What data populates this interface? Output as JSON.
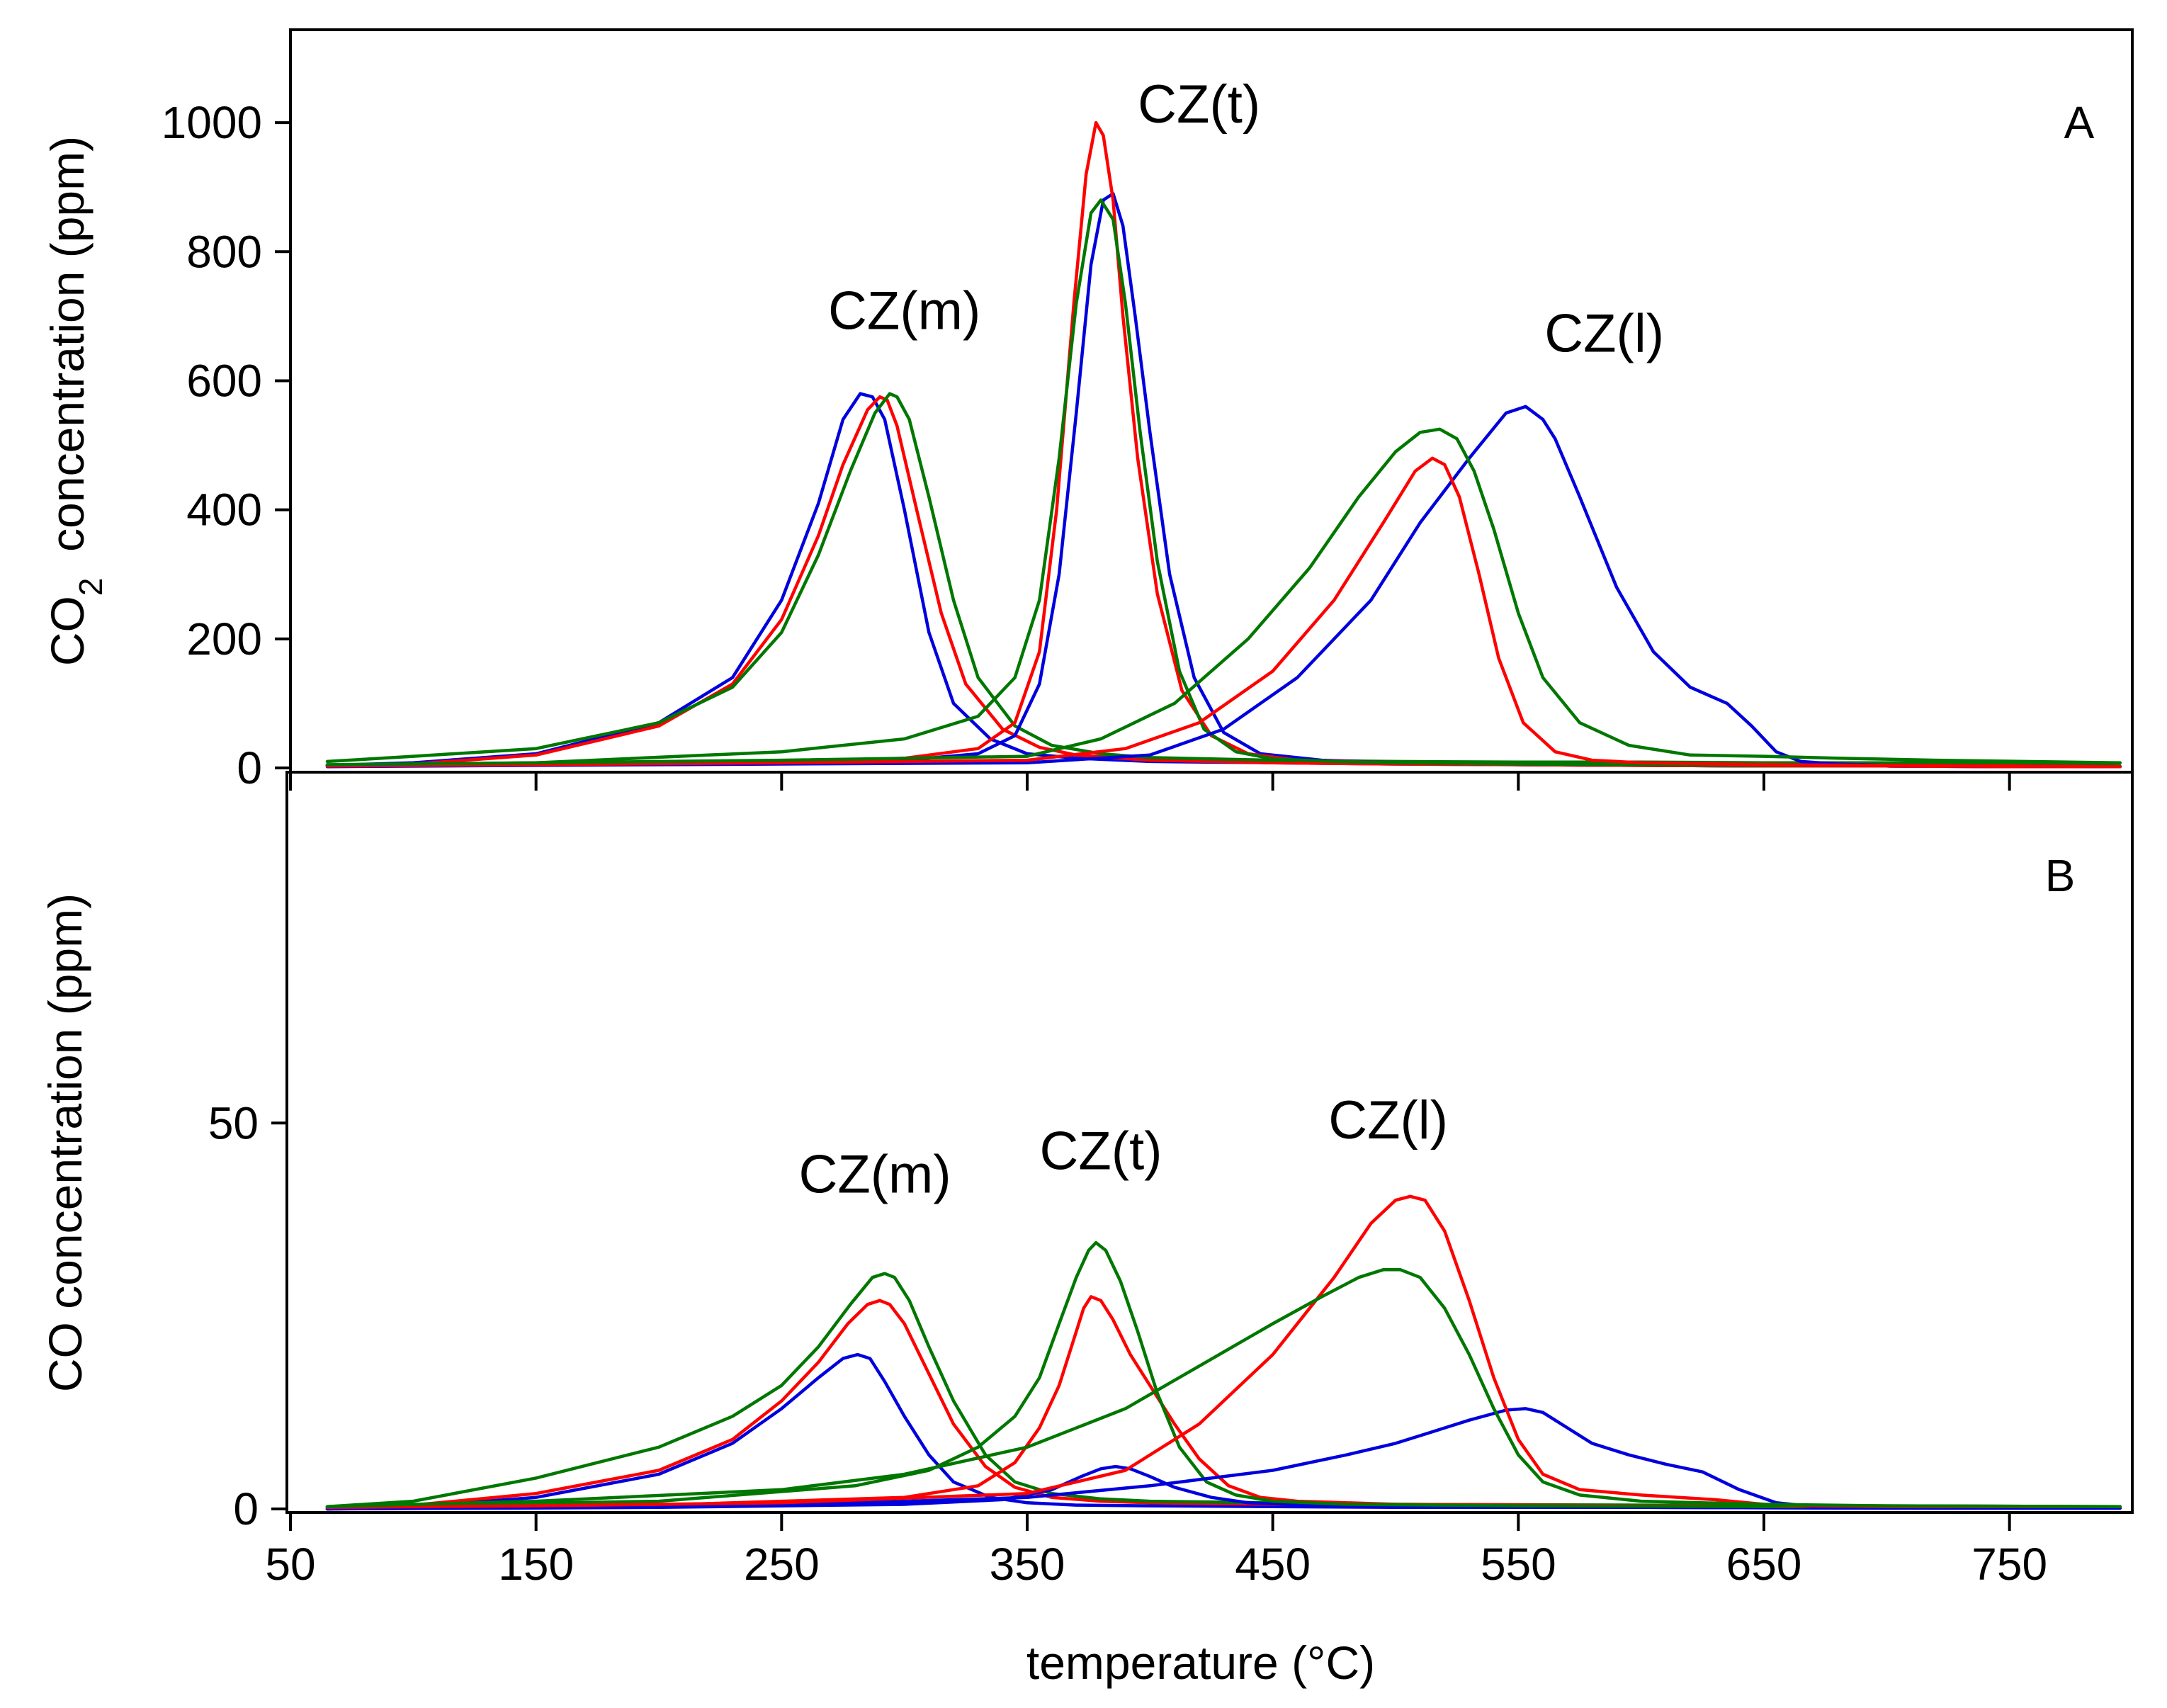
{
  "colors": {
    "blue": "#0000dd",
    "red": "#ff0000",
    "green": "#007700",
    "axis": "#000000"
  },
  "chart_data": [
    {
      "panel": "A",
      "type": "line",
      "panel_label": "A",
      "ylabel_main": "CO",
      "ylabel_sub": "2",
      "ylabel_rest": "  concentration (ppm)",
      "xlim": [
        50,
        800
      ],
      "ylim": [
        0,
        1100
      ],
      "yticks": [
        0,
        200,
        400,
        600,
        800,
        1000
      ],
      "yticklabels": [
        "0",
        "200",
        "400",
        "600",
        "800",
        "1000"
      ],
      "xticks": [
        50,
        150,
        250,
        350,
        450,
        550,
        650,
        750
      ],
      "annotations": [
        {
          "text": "CZ(m)",
          "x": 300,
          "y": 680
        },
        {
          "text": "CZ(t)",
          "x": 420,
          "y": 1000
        },
        {
          "text": "CZ(l)",
          "x": 585,
          "y": 645
        }
      ],
      "series": [
        {
          "name": "blue-1",
          "color": "blue",
          "x": [
            65,
            100,
            150,
            200,
            230,
            250,
            265,
            275,
            282,
            287,
            292,
            300,
            310,
            320,
            335,
            350,
            370,
            400,
            450,
            500,
            550,
            600,
            650,
            700,
            750,
            795
          ],
          "y": [
            4,
            8,
            22,
            70,
            140,
            260,
            410,
            540,
            580,
            575,
            540,
            400,
            210,
            100,
            45,
            22,
            15,
            10,
            8,
            6,
            5,
            4,
            3,
            3,
            2,
            2
          ]
        },
        {
          "name": "red-1",
          "color": "red",
          "x": [
            65,
            100,
            150,
            200,
            230,
            250,
            265,
            275,
            285,
            290,
            293,
            297,
            305,
            315,
            325,
            340,
            355,
            370,
            400,
            450,
            500,
            550,
            600,
            650,
            700,
            750,
            795
          ],
          "y": [
            4,
            6,
            20,
            65,
            130,
            230,
            360,
            470,
            555,
            575,
            570,
            530,
            400,
            240,
            130,
            60,
            32,
            20,
            12,
            8,
            6,
            5,
            4,
            3,
            3,
            2,
            2
          ]
        },
        {
          "name": "green-1",
          "color": "green",
          "x": [
            65,
            100,
            150,
            200,
            230,
            250,
            265,
            278,
            288,
            294,
            297,
            302,
            310,
            320,
            330,
            345,
            360,
            380,
            400,
            450,
            500,
            550,
            600,
            650,
            700,
            750,
            795
          ],
          "y": [
            10,
            18,
            30,
            70,
            125,
            210,
            330,
            460,
            550,
            580,
            575,
            540,
            420,
            260,
            140,
            65,
            35,
            22,
            16,
            12,
            10,
            9,
            9,
            8,
            8,
            8,
            8
          ]
        },
        {
          "name": "blue-2",
          "color": "blue",
          "x": [
            65,
            150,
            250,
            300,
            330,
            345,
            355,
            363,
            370,
            376,
            381,
            385,
            389,
            394,
            400,
            408,
            418,
            430,
            445,
            470,
            500,
            550,
            600,
            650,
            700,
            750,
            795
          ],
          "y": [
            3,
            5,
            8,
            12,
            22,
            50,
            130,
            300,
            550,
            780,
            880,
            890,
            840,
            700,
            520,
            300,
            140,
            55,
            22,
            12,
            8,
            5,
            4,
            3,
            3,
            2,
            2
          ]
        },
        {
          "name": "red-2",
          "color": "red",
          "x": [
            65,
            150,
            250,
            300,
            330,
            345,
            355,
            362,
            369,
            374,
            378,
            381,
            385,
            389,
            395,
            403,
            413,
            425,
            440,
            460,
            500,
            550,
            600,
            650,
            700,
            750,
            795
          ],
          "y": [
            3,
            5,
            8,
            15,
            30,
            70,
            180,
            400,
            720,
            920,
            1000,
            980,
            880,
            700,
            480,
            270,
            120,
            50,
            22,
            12,
            8,
            5,
            4,
            3,
            3,
            2,
            2
          ]
        },
        {
          "name": "green-2",
          "color": "green",
          "x": [
            65,
            150,
            250,
            300,
            330,
            345,
            355,
            363,
            370,
            376,
            380,
            385,
            390,
            396,
            403,
            412,
            422,
            435,
            450,
            475,
            500,
            550,
            600,
            650,
            700,
            750,
            795
          ],
          "y": [
            4,
            8,
            25,
            45,
            80,
            140,
            260,
            480,
            720,
            860,
            880,
            850,
            720,
            520,
            320,
            150,
            60,
            25,
            14,
            10,
            8,
            6,
            5,
            4,
            4,
            3,
            3
          ]
        },
        {
          "name": "blue-3",
          "color": "blue",
          "x": [
            65,
            150,
            250,
            350,
            400,
            430,
            460,
            490,
            510,
            530,
            545,
            553,
            560,
            565,
            575,
            590,
            605,
            620,
            635,
            645,
            655,
            665,
            680,
            700,
            750,
            795
          ],
          "y": [
            2,
            4,
            6,
            8,
            20,
            60,
            140,
            260,
            380,
            480,
            550,
            560,
            540,
            510,
            420,
            280,
            180,
            125,
            100,
            65,
            25,
            10,
            6,
            4,
            3,
            2
          ]
        },
        {
          "name": "red-3",
          "color": "red",
          "x": [
            65,
            150,
            250,
            350,
            390,
            420,
            450,
            475,
            495,
            508,
            515,
            520,
            526,
            534,
            542,
            552,
            565,
            580,
            600,
            650,
            700,
            750,
            795
          ],
          "y": [
            3,
            5,
            8,
            12,
            30,
            70,
            150,
            260,
            380,
            460,
            480,
            470,
            420,
            300,
            170,
            70,
            25,
            12,
            8,
            5,
            4,
            3,
            2
          ]
        },
        {
          "name": "green-3",
          "color": "green",
          "x": [
            65,
            150,
            250,
            350,
            380,
            410,
            440,
            465,
            485,
            500,
            510,
            518,
            525,
            532,
            540,
            550,
            560,
            575,
            595,
            620,
            650,
            680,
            720,
            795
          ],
          "y": [
            5,
            8,
            12,
            18,
            45,
            100,
            200,
            310,
            420,
            490,
            520,
            525,
            510,
            460,
            370,
            240,
            140,
            70,
            35,
            20,
            18,
            15,
            12,
            8
          ]
        }
      ]
    },
    {
      "panel": "B",
      "type": "line",
      "panel_label": "B",
      "ylabel": "CO concentration (ppm)",
      "xlabel": "temperature (°C)",
      "xlim": [
        50,
        800
      ],
      "ylim": [
        0,
        95
      ],
      "yticks": [
        0,
        50
      ],
      "yticklabels": [
        "0",
        "50"
      ],
      "xticks": [
        50,
        150,
        250,
        350,
        450,
        550,
        650,
        750
      ],
      "xticklabels": [
        "50",
        "150",
        "250",
        "350",
        "450",
        "550",
        "650",
        "750"
      ],
      "annotations": [
        {
          "text": "CZ(m)",
          "x": 288,
          "y": 41
        },
        {
          "text": "CZ(t)",
          "x": 380,
          "y": 44
        },
        {
          "text": "CZ(l)",
          "x": 497,
          "y": 48
        }
      ],
      "series": [
        {
          "name": "blue-1",
          "color": "blue",
          "x": [
            65,
            100,
            150,
            200,
            230,
            250,
            265,
            275,
            281,
            286,
            292,
            300,
            310,
            320,
            335,
            350,
            370,
            400,
            450,
            500,
            600,
            700,
            795
          ],
          "y": [
            0,
            0.3,
            1.5,
            4.5,
            8.5,
            13,
            17,
            19.5,
            20,
            19.5,
            16.5,
            12,
            7,
            3.5,
            1.5,
            0.8,
            0.5,
            0.4,
            0.3,
            0.2,
            0.2,
            0.1,
            0.1
          ]
        },
        {
          "name": "red-1",
          "color": "red",
          "x": [
            65,
            100,
            150,
            200,
            230,
            250,
            265,
            277,
            285,
            290,
            294,
            300,
            310,
            320,
            333,
            345,
            360,
            380,
            400,
            450,
            500,
            600,
            700,
            795
          ],
          "y": [
            0.2,
            0.5,
            2,
            5,
            9,
            14,
            19,
            24,
            26.5,
            27,
            26.5,
            24,
            17.5,
            11,
            5.5,
            2.8,
            1.5,
            1,
            0.8,
            0.6,
            0.5,
            0.4,
            0.3,
            0.3
          ]
        },
        {
          "name": "green-1",
          "color": "green",
          "x": [
            65,
            100,
            150,
            200,
            230,
            250,
            265,
            278,
            287,
            292,
            296,
            302,
            310,
            320,
            333,
            345,
            360,
            380,
            400,
            450,
            500,
            600,
            700,
            795
          ],
          "y": [
            0.3,
            1,
            4,
            8,
            12,
            16,
            21,
            26.5,
            30,
            30.5,
            30,
            27,
            21,
            14,
            7,
            3.5,
            2,
            1.3,
            1,
            0.8,
            0.6,
            0.5,
            0.4,
            0.3
          ]
        },
        {
          "name": "blue-2",
          "color": "blue",
          "x": [
            65,
            200,
            300,
            340,
            360,
            372,
            380,
            386,
            392,
            400,
            410,
            425,
            440,
            470,
            500,
            600,
            700,
            795
          ],
          "y": [
            0,
            0.2,
            0.6,
            1.2,
            2.5,
            4.2,
            5.2,
            5.5,
            5.2,
            4.2,
            2.8,
            1.5,
            0.8,
            0.4,
            0.3,
            0.2,
            0.1,
            0.1
          ]
        },
        {
          "name": "red-2",
          "color": "red",
          "x": [
            65,
            200,
            300,
            330,
            345,
            355,
            363,
            369,
            373,
            376,
            380,
            385,
            392,
            400,
            410,
            420,
            432,
            445,
            460,
            500,
            600,
            700,
            795
          ],
          "y": [
            0.2,
            0.5,
            1.5,
            3,
            6,
            10.5,
            16,
            22,
            26,
            27.5,
            27,
            24.5,
            20,
            16,
            11,
            6.5,
            3,
            1.5,
            1,
            0.6,
            0.4,
            0.3,
            0.3
          ]
        },
        {
          "name": "green-2",
          "color": "green",
          "x": [
            65,
            200,
            280,
            310,
            330,
            345,
            355,
            363,
            370,
            375,
            378,
            382,
            388,
            395,
            403,
            412,
            423,
            435,
            450,
            480,
            550,
            650,
            795
          ],
          "y": [
            0.3,
            1,
            3,
            5,
            8,
            12,
            17,
            24,
            30,
            33.5,
            34.5,
            33.5,
            29.5,
            23,
            15,
            8,
            3.5,
            1.8,
            1,
            0.6,
            0.4,
            0.3,
            0.3
          ]
        },
        {
          "name": "blue-3",
          "color": "blue",
          "x": [
            65,
            150,
            250,
            350,
            400,
            450,
            480,
            500,
            515,
            530,
            545,
            553,
            560,
            570,
            580,
            595,
            610,
            625,
            640,
            655,
            670,
            690,
            720,
            795
          ],
          "y": [
            0,
            0.2,
            0.5,
            1.5,
            3,
            5,
            7,
            8.5,
            10,
            11.5,
            12.8,
            13,
            12.5,
            10.5,
            8.5,
            7,
            5.8,
            4.8,
            2.5,
            0.8,
            0.3,
            0.2,
            0.1,
            0.1
          ]
        },
        {
          "name": "red-3",
          "color": "red",
          "x": [
            65,
            150,
            250,
            350,
            390,
            420,
            450,
            475,
            490,
            500,
            506,
            512,
            520,
            530,
            540,
            550,
            560,
            575,
            600,
            630,
            650,
            670,
            700,
            795
          ],
          "y": [
            0.2,
            0.4,
            0.8,
            2,
            5,
            11,
            20,
            30,
            37,
            40,
            40.5,
            40,
            36,
            27,
            17,
            9,
            4.5,
            2.5,
            1.8,
            1.2,
            0.6,
            0.4,
            0.3,
            0.3
          ]
        },
        {
          "name": "green-3",
          "color": "green",
          "x": [
            65,
            150,
            250,
            300,
            350,
            390,
            420,
            450,
            470,
            485,
            495,
            502,
            510,
            520,
            530,
            540,
            550,
            560,
            575,
            600,
            650,
            700,
            795
          ],
          "y": [
            0.3,
            1,
            2.5,
            4.5,
            8,
            13,
            18.5,
            24,
            27.5,
            30,
            31,
            31,
            30,
            26,
            20,
            13,
            7,
            3.5,
            1.8,
            1,
            0.6,
            0.4,
            0.3
          ]
        }
      ]
    }
  ]
}
